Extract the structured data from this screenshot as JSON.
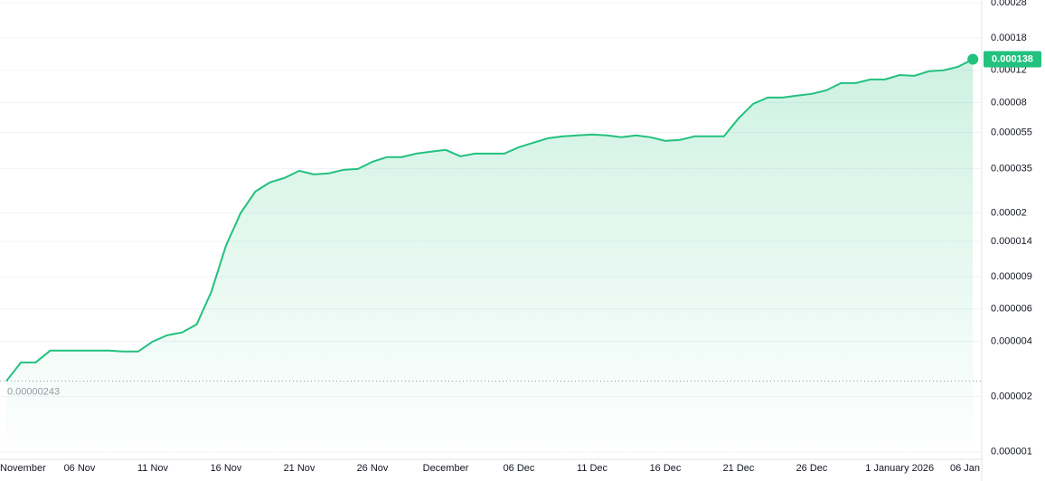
{
  "chart_data": {
    "type": "area",
    "log_scale": true,
    "grid": true,
    "color": "#22c17e",
    "categories": [
      "November",
      null,
      null,
      null,
      null,
      "06 Nov",
      null,
      null,
      null,
      null,
      "11 Nov",
      null,
      null,
      null,
      null,
      "16 Nov",
      null,
      null,
      null,
      null,
      "21 Nov",
      null,
      null,
      null,
      null,
      "26 Nov",
      null,
      null,
      null,
      null,
      "December",
      null,
      null,
      null,
      null,
      "06 Dec",
      null,
      null,
      null,
      null,
      "11 Dec",
      null,
      null,
      null,
      null,
      "16 Dec",
      null,
      null,
      null,
      null,
      "21 Dec",
      null,
      null,
      null,
      null,
      "26 Dec",
      null,
      null,
      null,
      null,
      null,
      "1 January 2026",
      null,
      null,
      null,
      null,
      "06 Jan"
    ],
    "values": [
      2.43e-06,
      3.07e-06,
      3.07e-06,
      3.56e-06,
      3.56e-06,
      3.56e-06,
      3.56e-06,
      3.56e-06,
      3.52e-06,
      3.52e-06,
      3.99e-06,
      4.32e-06,
      4.47e-06,
      4.95e-06,
      7.45e-06,
      1.33e-05,
      2e-05,
      2.62e-05,
      2.94e-05,
      3.11e-05,
      3.4e-05,
      3.25e-05,
      3.29e-05,
      3.44e-05,
      3.48e-05,
      3.81e-05,
      4.04e-05,
      4.04e-05,
      4.22e-05,
      4.32e-05,
      4.42e-05,
      4.08e-05,
      4.22e-05,
      4.22e-05,
      4.22e-05,
      4.57e-05,
      4.84e-05,
      5.12e-05,
      5.24e-05,
      5.3e-05,
      5.36e-05,
      5.3e-05,
      5.18e-05,
      5.3e-05,
      5.18e-05,
      4.95e-05,
      5.01e-05,
      5.24e-05,
      5.24e-05,
      5.24e-05,
      6.57e-05,
      7.88e-05,
      8.53e-05,
      8.53e-05,
      8.73e-05,
      8.93e-05,
      9.34e-05,
      0.0001023,
      0.0001023,
      0.000107,
      0.000107,
      0.000113,
      0.000112,
      0.0001186,
      0.00012,
      0.0001255,
      0.000138
    ],
    "ylim": [
      9.1e-07,
      0.00029
    ],
    "yticks": [
      0.00028,
      0.00018,
      0.00012,
      8e-05,
      5.5e-05,
      3.5e-05,
      2e-05,
      1.4e-05,
      9e-06,
      6e-06,
      4e-06,
      2e-06,
      1e-06
    ]
  }
}
